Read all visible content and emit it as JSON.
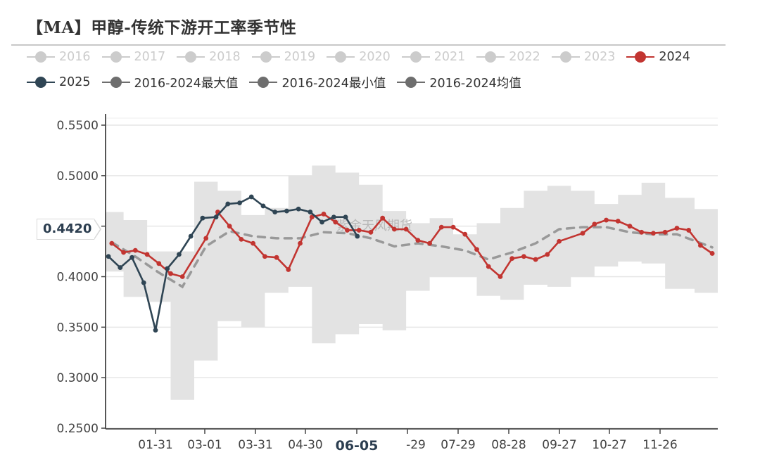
{
  "title": "【MA】甲醇-传统下游开工率季节性",
  "legend": {
    "row1": [
      {
        "label": "2016",
        "color": "#cccccc",
        "active": false
      },
      {
        "label": "2017",
        "color": "#cccccc",
        "active": false
      },
      {
        "label": "2018",
        "color": "#cccccc",
        "active": false
      },
      {
        "label": "2019",
        "color": "#cccccc",
        "active": false
      },
      {
        "label": "2020",
        "color": "#cccccc",
        "active": false
      },
      {
        "label": "2021",
        "color": "#cccccc",
        "active": false
      },
      {
        "label": "2022",
        "color": "#cccccc",
        "active": false
      },
      {
        "label": "2023",
        "color": "#cccccc",
        "active": false
      },
      {
        "label": "2024",
        "color": "#c23531",
        "active": true
      }
    ],
    "row2": [
      {
        "label": "2025",
        "color": "#2f4554",
        "active": true
      },
      {
        "label": "2016-2024最大值",
        "color": "#6e6e6e",
        "active": true
      },
      {
        "label": "2016-2024最小值",
        "color": "#6e6e6e",
        "active": true
      },
      {
        "label": "2016-2024均值",
        "color": "#6e6e6e",
        "active": true
      }
    ]
  },
  "axis_pointer_label": "0.4420",
  "watermark": "紫金天风期货",
  "colors": {
    "series_2024": "#c23531",
    "series_2025": "#2f4554",
    "band": "#e3e3e3",
    "mean": "#999999",
    "grid": "#e6e6e6",
    "axis": "#444444"
  },
  "chart_data": {
    "type": "line",
    "title": "【MA】甲醇-传统下游开工率季节性",
    "xlabel": "",
    "ylabel": "",
    "ylim": [
      0.25,
      0.56
    ],
    "y_ticks": [
      "0.2500",
      "0.3000",
      "0.3500",
      "0.4000",
      "0.4500",
      "0.5000",
      "0.5500"
    ],
    "x_ticks": [
      "01-31",
      "03-01",
      "03-31",
      "04-30",
      "06-05",
      "06-29",
      "07-29",
      "08-28",
      "09-27",
      "10-27",
      "11-26"
    ],
    "x_tick_highlight": "06-05",
    "grid": true,
    "legend_position": "top",
    "series": [
      {
        "name": "2024",
        "color": "#c23531",
        "x": [
          "01-05",
          "01-12",
          "01-19",
          "01-26",
          "02-02",
          "02-09",
          "02-16",
          "03-01",
          "03-08",
          "03-15",
          "03-22",
          "03-29",
          "04-05",
          "04-12",
          "04-19",
          "04-26",
          "05-03",
          "05-10",
          "05-17",
          "05-24",
          "05-31",
          "06-07",
          "06-14",
          "06-21",
          "06-28",
          "07-05",
          "07-12",
          "07-19",
          "07-26",
          "08-02",
          "08-09",
          "08-16",
          "08-23",
          "08-30",
          "09-06",
          "09-13",
          "09-20",
          "09-27",
          "10-11",
          "10-18",
          "10-25",
          "11-01",
          "11-08",
          "11-15",
          "11-22",
          "11-29",
          "12-06",
          "12-13",
          "12-20",
          "12-27"
        ],
        "values": [
          0.433,
          0.424,
          0.426,
          0.422,
          0.413,
          0.403,
          0.4,
          0.438,
          0.464,
          0.45,
          0.437,
          0.433,
          0.42,
          0.419,
          0.407,
          0.433,
          0.459,
          0.462,
          0.454,
          0.446,
          0.446,
          0.444,
          0.458,
          0.447,
          0.447,
          0.436,
          0.433,
          0.449,
          0.449,
          0.442,
          0.427,
          0.41,
          0.4,
          0.418,
          0.42,
          0.417,
          0.422,
          0.435,
          0.443,
          0.452,
          0.456,
          0.455,
          0.45,
          0.444,
          0.443,
          0.444,
          0.448,
          0.446,
          0.431,
          0.423
        ]
      },
      {
        "name": "2025",
        "color": "#2f4554",
        "x": [
          "01-03",
          "01-10",
          "01-17",
          "01-24",
          "01-31",
          "02-07",
          "02-14",
          "02-21",
          "02-28",
          "03-07",
          "03-14",
          "03-21",
          "03-28",
          "04-04",
          "04-11",
          "04-18",
          "04-25",
          "05-02",
          "05-09",
          "05-16",
          "05-23",
          "05-30"
        ],
        "values": [
          0.42,
          0.409,
          0.419,
          0.394,
          0.347,
          0.408,
          0.422,
          0.44,
          0.458,
          0.459,
          0.472,
          0.473,
          0.479,
          0.47,
          0.464,
          0.465,
          0.467,
          0.464,
          0.454,
          0.459,
          0.459,
          0.44
        ]
      },
      {
        "name": "2016-2024均值",
        "color": "#999999",
        "style": "dashed",
        "x": [
          "01-05",
          "01-19",
          "02-02",
          "02-16",
          "03-01",
          "03-15",
          "03-29",
          "04-12",
          "04-26",
          "05-10",
          "05-24",
          "06-07",
          "06-21",
          "07-05",
          "07-19",
          "08-02",
          "08-16",
          "08-30",
          "09-13",
          "09-27",
          "10-11",
          "10-25",
          "11-08",
          "11-22",
          "12-06",
          "12-27"
        ],
        "values": [
          0.434,
          0.42,
          0.404,
          0.39,
          0.43,
          0.445,
          0.44,
          0.438,
          0.438,
          0.444,
          0.443,
          0.438,
          0.43,
          0.433,
          0.43,
          0.426,
          0.417,
          0.424,
          0.433,
          0.447,
          0.449,
          0.449,
          0.444,
          0.442,
          0.442,
          0.429
        ]
      },
      {
        "name": "2016-2024最大值",
        "color": "#e3e3e3",
        "x": [
          "01-05",
          "01-19",
          "02-02",
          "02-16",
          "03-01",
          "03-15",
          "03-29",
          "04-12",
          "04-26",
          "05-10",
          "05-24",
          "06-07",
          "06-21",
          "07-05",
          "07-19",
          "08-02",
          "08-16",
          "08-30",
          "09-13",
          "09-27",
          "10-11",
          "10-25",
          "11-08",
          "11-22",
          "12-06",
          "12-27"
        ],
        "values": [
          0.464,
          0.456,
          0.425,
          0.425,
          0.494,
          0.485,
          0.461,
          0.468,
          0.5,
          0.51,
          0.503,
          0.491,
          0.465,
          0.453,
          0.458,
          0.442,
          0.453,
          0.468,
          0.485,
          0.49,
          0.485,
          0.472,
          0.481,
          0.493,
          0.478,
          0.467
        ]
      },
      {
        "name": "2016-2024最小值",
        "color": "#e3e3e3",
        "x": [
          "01-05",
          "01-19",
          "02-02",
          "02-16",
          "03-01",
          "03-15",
          "03-29",
          "04-12",
          "04-26",
          "05-10",
          "05-24",
          "06-07",
          "06-21",
          "07-05",
          "07-19",
          "08-02",
          "08-16",
          "08-30",
          "09-13",
          "09-27",
          "10-11",
          "10-25",
          "11-08",
          "11-22",
          "12-06",
          "12-27"
        ],
        "values": [
          0.405,
          0.38,
          0.375,
          0.278,
          0.317,
          0.356,
          0.35,
          0.384,
          0.39,
          0.334,
          0.343,
          0.353,
          0.347,
          0.386,
          0.4,
          0.4,
          0.381,
          0.377,
          0.392,
          0.39,
          0.4,
          0.41,
          0.415,
          0.413,
          0.388,
          0.384
        ]
      }
    ]
  }
}
